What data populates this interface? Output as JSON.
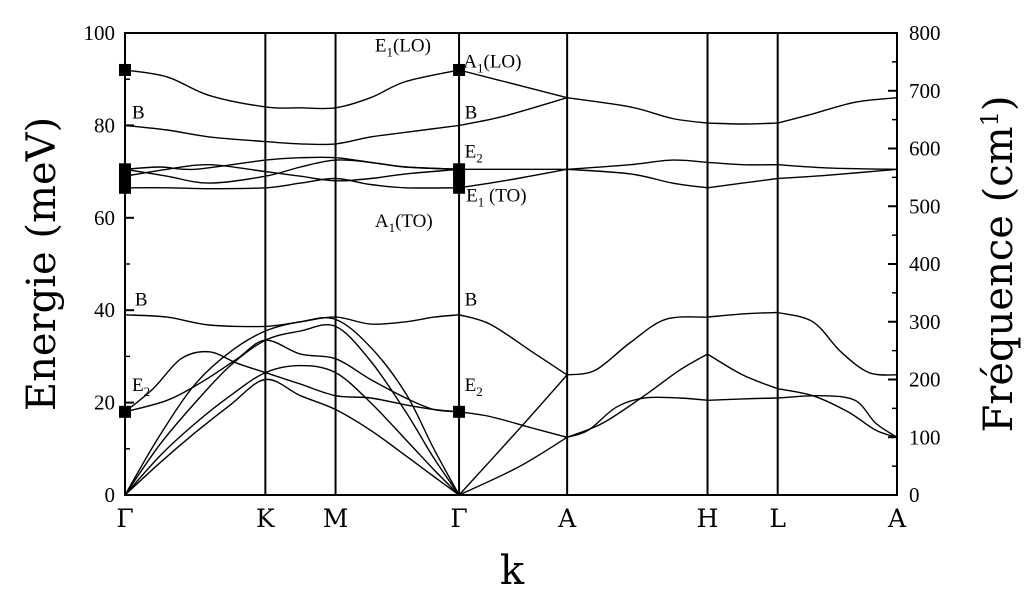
{
  "chart_data": {
    "type": "line",
    "xlabel": "k",
    "ylabel": "Energie (meV)",
    "ylabel_right": "Fréquence (cm-1)",
    "ylim": [
      0,
      100
    ],
    "ylim_right": [
      0,
      800
    ],
    "yticks": [
      0,
      20,
      40,
      60,
      80,
      100
    ],
    "yticks_right": [
      0,
      100,
      200,
      300,
      400,
      500,
      600,
      700,
      800
    ],
    "kpoints": [
      {
        "label": "Γ",
        "k": 0
      },
      {
        "label": "K",
        "k": 1
      },
      {
        "label": "M",
        "k": 1.5
      },
      {
        "label": "Γ",
        "k": 2.38
      },
      {
        "label": "A",
        "k": 3.15
      },
      {
        "label": "H",
        "k": 4.15
      },
      {
        "label": "L",
        "k": 4.65
      },
      {
        "label": "A",
        "k": 5.5
      }
    ],
    "series": [
      {
        "x": [
          0,
          0.25,
          0.5,
          0.75,
          1,
          1.25,
          1.5,
          1.75,
          2,
          2.2,
          2.38
        ],
        "y": [
          0,
          7,
          13.5,
          19.5,
          25,
          21.5,
          18.5,
          14,
          8.5,
          4,
          0
        ]
      },
      {
        "x": [
          0,
          0.25,
          0.5,
          0.75,
          1,
          1.25,
          1.5,
          1.75,
          2,
          2.2,
          2.38
        ],
        "y": [
          0,
          8.5,
          15.5,
          21.5,
          26.5,
          28,
          26.5,
          20,
          12,
          5.5,
          0
        ]
      },
      {
        "x": [
          0,
          0.25,
          0.5,
          0.75,
          1,
          1.25,
          1.5,
          1.75,
          2,
          2.2,
          2.38
        ],
        "y": [
          0,
          11,
          20,
          28,
          33.5,
          35.5,
          36.5,
          29,
          18,
          8,
          0
        ]
      },
      {
        "x": [
          0,
          0.25,
          0.5,
          0.75,
          1,
          1.25,
          1.5,
          1.75,
          2,
          2.2,
          2.38
        ],
        "y": [
          0,
          13,
          24,
          31,
          35.5,
          37.5,
          38,
          32,
          22,
          10,
          0
        ]
      },
      {
        "x": [
          0,
          0.3,
          0.55,
          0.8,
          1,
          1.25,
          1.5,
          1.75,
          2,
          2.2,
          2.38
        ],
        "y": [
          18,
          20.5,
          24.5,
          29.5,
          33.5,
          30.5,
          29.5,
          25,
          21,
          18.5,
          18
        ]
      },
      {
        "x": [
          0,
          0.2,
          0.4,
          0.6,
          0.8,
          1,
          1.25,
          1.5,
          1.75,
          2,
          2.2,
          2.38
        ],
        "y": [
          18,
          23,
          29.5,
          31,
          28.5,
          26.5,
          24,
          21.5,
          21,
          19.5,
          18.5,
          18
        ]
      },
      {
        "x": [
          0,
          0.3,
          0.6,
          1,
          1.25,
          1.5,
          1.75,
          2,
          2.2,
          2.38
        ],
        "y": [
          39,
          38.5,
          36.8,
          36.5,
          37.5,
          38.5,
          37,
          37.5,
          38.5,
          39
        ]
      },
      {
        "x": [
          0,
          0.3,
          0.6,
          1,
          1.25,
          1.5,
          1.75,
          2,
          2.38
        ],
        "y": [
          66.5,
          66.5,
          66.3,
          66.5,
          67.5,
          68.5,
          67.2,
          66.5,
          66.5
        ]
      },
      {
        "x": [
          0,
          0.3,
          0.6,
          1,
          1.25,
          1.5,
          1.75,
          2,
          2.38
        ],
        "y": [
          69,
          70.5,
          71.5,
          70,
          69,
          68,
          68.5,
          69.5,
          70.5
        ]
      },
      {
        "x": [
          0,
          0.3,
          0.6,
          1,
          1.25,
          1.5,
          1.75,
          2,
          2.38
        ],
        "y": [
          70.5,
          69,
          67.5,
          69,
          71,
          72.5,
          72,
          71,
          70.5
        ]
      },
      {
        "x": [
          0,
          0.25,
          0.5,
          1,
          1.25,
          1.5,
          1.75,
          2,
          2.38
        ],
        "y": [
          70.5,
          71,
          70.5,
          72.5,
          73,
          73,
          72,
          71,
          70.5
        ]
      },
      {
        "x": [
          0,
          0.3,
          0.6,
          1,
          1.25,
          1.5,
          1.75,
          2,
          2.38
        ],
        "y": [
          80,
          79,
          77.5,
          76.5,
          76,
          76,
          77.5,
          78.5,
          80
        ]
      },
      {
        "x": [
          0,
          0.3,
          0.6,
          1,
          1.25,
          1.5,
          1.75,
          2,
          2.38
        ],
        "y": [
          92,
          90.5,
          86.5,
          84,
          83.8,
          83.8,
          86,
          89.5,
          92
        ]
      },
      {
        "x": [
          2.38,
          2.8,
          3.15
        ],
        "y": [
          0,
          6,
          12.5
        ]
      },
      {
        "x": [
          2.38,
          2.8,
          3.15
        ],
        "y": [
          0,
          14,
          26
        ]
      },
      {
        "x": [
          2.38,
          2.6,
          2.9,
          3.15
        ],
        "y": [
          18,
          17,
          14.5,
          12.5
        ]
      },
      {
        "x": [
          2.38,
          2.6,
          2.9,
          3.15
        ],
        "y": [
          39,
          37,
          31,
          26
        ]
      },
      {
        "x": [
          2.38,
          2.7,
          3.15
        ],
        "y": [
          66.5,
          68,
          70.5
        ]
      },
      {
        "x": [
          2.38,
          2.7,
          3.15
        ],
        "y": [
          70.5,
          70.5,
          70.5
        ]
      },
      {
        "x": [
          2.38,
          2.7,
          3.15
        ],
        "y": [
          80,
          82,
          86
        ]
      },
      {
        "x": [
          2.38,
          2.7,
          3.15
        ],
        "y": [
          92,
          89.5,
          86
        ]
      },
      {
        "x": [
          3.15,
          3.4,
          3.7,
          3.95,
          4.15
        ],
        "y": [
          12.5,
          15.5,
          21.5,
          27,
          30.5
        ]
      },
      {
        "x": [
          3.15,
          3.3,
          3.5,
          3.7,
          3.95,
          4.15
        ],
        "y": [
          12.5,
          14,
          19,
          21,
          21,
          20.5
        ]
      },
      {
        "x": [
          3.15,
          3.35,
          3.6,
          3.85,
          4.15
        ],
        "y": [
          26,
          27,
          33,
          38,
          38.5
        ]
      },
      {
        "x": [
          3.15,
          3.6,
          3.9,
          4.15
        ],
        "y": [
          70.5,
          71.5,
          72.5,
          72
        ]
      },
      {
        "x": [
          3.15,
          3.6,
          3.9,
          4.15
        ],
        "y": [
          70.5,
          69.5,
          67.5,
          66.5
        ]
      },
      {
        "x": [
          3.15,
          3.6,
          3.9,
          4.15
        ],
        "y": [
          86,
          84,
          81.5,
          80.5
        ]
      },
      {
        "x": [
          4.15,
          4.4,
          4.65
        ],
        "y": [
          30.5,
          26,
          23
        ]
      },
      {
        "x": [
          4.15,
          4.4,
          4.65
        ],
        "y": [
          20.5,
          20.8,
          21
        ]
      },
      {
        "x": [
          4.15,
          4.4,
          4.65
        ],
        "y": [
          38.5,
          39.2,
          39.5
        ]
      },
      {
        "x": [
          4.15,
          4.4,
          4.65
        ],
        "y": [
          72,
          71.5,
          71.5
        ]
      },
      {
        "x": [
          4.15,
          4.4,
          4.65
        ],
        "y": [
          66.5,
          67.5,
          68.5
        ]
      },
      {
        "x": [
          4.15,
          4.4,
          4.65
        ],
        "y": [
          80.5,
          80.3,
          80.5
        ]
      },
      {
        "x": [
          4.65,
          4.9,
          5.15,
          5.35,
          5.5
        ],
        "y": [
          23,
          21.5,
          18,
          14,
          12.5
        ]
      },
      {
        "x": [
          4.65,
          4.95,
          5.2,
          5.35,
          5.5
        ],
        "y": [
          21,
          21.5,
          20.5,
          15.5,
          12.5
        ]
      },
      {
        "x": [
          4.65,
          4.9,
          5.1,
          5.3,
          5.5
        ],
        "y": [
          39.5,
          37.5,
          31,
          26.5,
          26
        ]
      },
      {
        "x": [
          4.65,
          5,
          5.5
        ],
        "y": [
          71.5,
          70.8,
          70.5
        ]
      },
      {
        "x": [
          4.65,
          5,
          5.5
        ],
        "y": [
          68.5,
          69.2,
          70.5
        ]
      },
      {
        "x": [
          4.65,
          4.9,
          5.2,
          5.5
        ],
        "y": [
          80.5,
          82.5,
          85,
          86
        ]
      }
    ],
    "markers": [
      {
        "x": 0,
        "y": 92
      },
      {
        "x": 0,
        "y": 70.5
      },
      {
        "x": 0,
        "y": 69
      },
      {
        "x": 0,
        "y": 66.5
      },
      {
        "x": 0,
        "y": 18
      },
      {
        "x": 2.38,
        "y": 92
      },
      {
        "x": 2.38,
        "y": 70.5
      },
      {
        "x": 2.38,
        "y": 69
      },
      {
        "x": 2.38,
        "y": 66.5
      },
      {
        "x": 2.38,
        "y": 18
      }
    ],
    "annotations": [
      {
        "text": "B",
        "x": 0.05,
        "y": 81.5
      },
      {
        "text": "B",
        "x": 0.07,
        "y": 41
      },
      {
        "text": "E",
        "sub": "2",
        "x": 0.05,
        "y": 22.5
      },
      {
        "text": "E",
        "sub": "1",
        "tail": "(LO)",
        "x": 1.78,
        "y": 96
      },
      {
        "text": "A",
        "sub": "1",
        "tail": "(LO)",
        "x": 2.41,
        "y": 92.5
      },
      {
        "text": "B",
        "x": 2.42,
        "y": 81.5
      },
      {
        "text": "E",
        "sub": "2",
        "x": 2.42,
        "y": 73
      },
      {
        "text": "E",
        "sub": "1",
        "tail": " (TO)",
        "x": 2.43,
        "y": 63.5
      },
      {
        "text": "A",
        "sub": "1",
        "tail": "(TO)",
        "x": 1.78,
        "y": 58
      },
      {
        "text": "B",
        "x": 2.42,
        "y": 41
      },
      {
        "text": "E",
        "sub": "2",
        "x": 2.42,
        "y": 22.5
      }
    ]
  }
}
